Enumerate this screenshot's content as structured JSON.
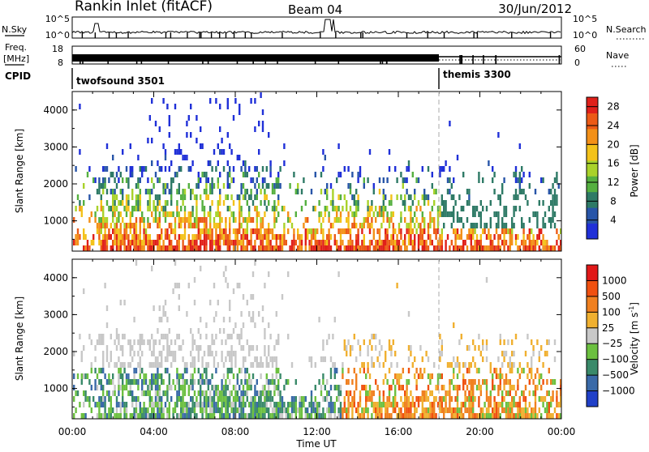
{
  "header": {
    "station": "Rankin Inlet (fitACF)",
    "beam": "Beam 04",
    "date": "30/Jun/2012"
  },
  "info_panel": {
    "nsky_label": "N.Sky",
    "nsky_ticks": [
      "10^5",
      "10^0"
    ],
    "nsearch_label": "N.Search",
    "nsearch_ticks": [
      "10^5",
      "10^0"
    ],
    "freq_label": "Freq.",
    "freq_unit": "[MHz]",
    "freq_ticks": [
      "18",
      "8"
    ],
    "nave_label": "Nave",
    "nave_ticks": [
      "60",
      "0"
    ],
    "cpid_label": "CPID",
    "cpid_entries": [
      {
        "name": "twofsound 3501",
        "start": "00:00"
      },
      {
        "name": "themis 3300",
        "start": "18:00"
      }
    ]
  },
  "chart_data": [
    {
      "type": "heatmap",
      "name": "power",
      "ylabel": "Slant Range [km]",
      "yticks": [
        "1000",
        "2000",
        "3000",
        "4000"
      ],
      "ylim": [
        180,
        4500
      ],
      "xlim": [
        0,
        24
      ],
      "colorbar_label": "Power [dB]",
      "colorbar_ticks": [
        "4",
        "8",
        "12",
        "16",
        "20",
        "24",
        "28"
      ],
      "colorbar_range": [
        0,
        30
      ],
      "colors": [
        "#2030d8",
        "#2855a8",
        "#2e7a66",
        "#55b040",
        "#a9d22a",
        "#f3c21a",
        "#f39018",
        "#ec5a16",
        "#e0201a"
      ],
      "grid": false
    },
    {
      "type": "heatmap",
      "name": "velocity",
      "ylabel": "Slant Range [km]",
      "yticks": [
        "1000",
        "2000",
        "3000",
        "4000"
      ],
      "ylim": [
        180,
        4500
      ],
      "xlim": [
        0,
        24
      ],
      "colorbar_label": "Velocity [m s",
      "colorbar_label_sup": "-1",
      "colorbar_label_end": "]",
      "colorbar_ticks": [
        "1000",
        "500",
        "100",
        "25",
        "−25",
        "−100",
        "−500",
        "−1000"
      ],
      "colors": [
        "#2040c8",
        "#3a6aa8",
        "#3a8a6a",
        "#6cc040",
        "#c8c8c8",
        "#f0b030",
        "#f08020",
        "#f05010",
        "#e01818"
      ],
      "grid": false
    }
  ],
  "x_axis": {
    "ticks": [
      "00:00",
      "04:00",
      "08:00",
      "12:00",
      "16:00",
      "20:00",
      "00:00"
    ],
    "label": "Time UT"
  }
}
